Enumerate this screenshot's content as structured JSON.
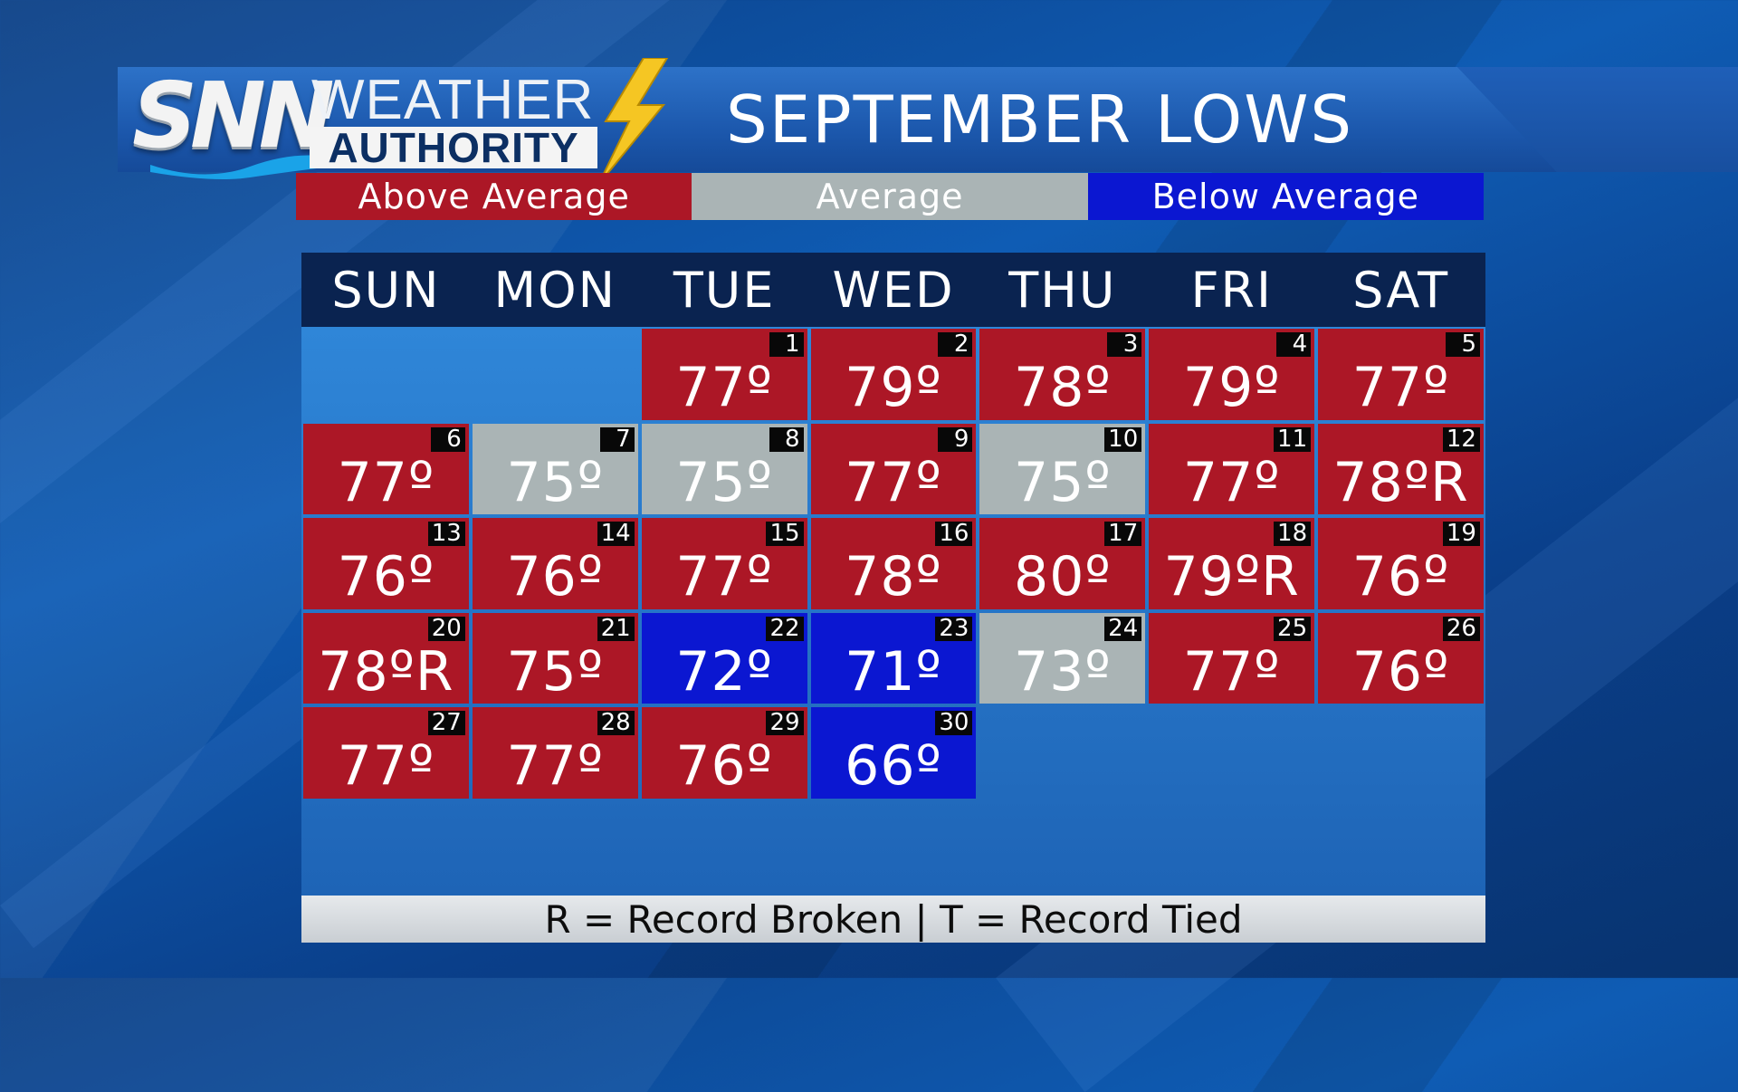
{
  "brand": {
    "logo_text": "SNN",
    "weather_word": "WEATHER",
    "authority_word": "AUTHORITY"
  },
  "title": "SEPTEMBER LOWS",
  "legend": [
    {
      "label": "Above Average",
      "color": "#ac1726"
    },
    {
      "label": "Average",
      "color": "#aab4b5"
    },
    {
      "label": "Below Average",
      "color": "#0b17d1"
    }
  ],
  "days": [
    "SUN",
    "MON",
    "TUE",
    "WED",
    "THU",
    "FRI",
    "SAT"
  ],
  "calendar": [
    {
      "date": "1",
      "temp": "77º",
      "status": "above",
      "weekday": 2,
      "week": 0
    },
    {
      "date": "2",
      "temp": "79º",
      "status": "above",
      "weekday": 3,
      "week": 0
    },
    {
      "date": "3",
      "temp": "78º",
      "status": "above",
      "weekday": 4,
      "week": 0
    },
    {
      "date": "4",
      "temp": "79º",
      "status": "above",
      "weekday": 5,
      "week": 0
    },
    {
      "date": "5",
      "temp": "77º",
      "status": "above",
      "weekday": 6,
      "week": 0
    },
    {
      "date": "6",
      "temp": "77º",
      "status": "above",
      "weekday": 0,
      "week": 1
    },
    {
      "date": "7",
      "temp": "75º",
      "status": "avg",
      "weekday": 1,
      "week": 1
    },
    {
      "date": "8",
      "temp": "75º",
      "status": "avg",
      "weekday": 2,
      "week": 1
    },
    {
      "date": "9",
      "temp": "77º",
      "status": "above",
      "weekday": 3,
      "week": 1
    },
    {
      "date": "10",
      "temp": "75º",
      "status": "avg",
      "weekday": 4,
      "week": 1
    },
    {
      "date": "11",
      "temp": "77º",
      "status": "above",
      "weekday": 5,
      "week": 1
    },
    {
      "date": "12",
      "temp": "78ºR",
      "status": "above",
      "weekday": 6,
      "week": 1
    },
    {
      "date": "13",
      "temp": "76º",
      "status": "above",
      "weekday": 0,
      "week": 2
    },
    {
      "date": "14",
      "temp": "76º",
      "status": "above",
      "weekday": 1,
      "week": 2
    },
    {
      "date": "15",
      "temp": "77º",
      "status": "above",
      "weekday": 2,
      "week": 2
    },
    {
      "date": "16",
      "temp": "78º",
      "status": "above",
      "weekday": 3,
      "week": 2
    },
    {
      "date": "17",
      "temp": "80º",
      "status": "above",
      "weekday": 4,
      "week": 2
    },
    {
      "date": "18",
      "temp": "79ºR",
      "status": "above",
      "weekday": 5,
      "week": 2
    },
    {
      "date": "19",
      "temp": "76º",
      "status": "above",
      "weekday": 6,
      "week": 2
    },
    {
      "date": "20",
      "temp": "78ºR",
      "status": "above",
      "weekday": 0,
      "week": 3
    },
    {
      "date": "21",
      "temp": "75º",
      "status": "above",
      "weekday": 1,
      "week": 3
    },
    {
      "date": "22",
      "temp": "72º",
      "status": "below",
      "weekday": 2,
      "week": 3
    },
    {
      "date": "23",
      "temp": "71º",
      "status": "below",
      "weekday": 3,
      "week": 3
    },
    {
      "date": "24",
      "temp": "73º",
      "status": "avg",
      "weekday": 4,
      "week": 3
    },
    {
      "date": "25",
      "temp": "77º",
      "status": "above",
      "weekday": 5,
      "week": 3
    },
    {
      "date": "26",
      "temp": "76º",
      "status": "above",
      "weekday": 6,
      "week": 3
    },
    {
      "date": "27",
      "temp": "77º",
      "status": "above",
      "weekday": 0,
      "week": 4
    },
    {
      "date": "28",
      "temp": "77º",
      "status": "above",
      "weekday": 1,
      "week": 4
    },
    {
      "date": "29",
      "temp": "76º",
      "status": "above",
      "weekday": 2,
      "week": 4
    },
    {
      "date": "30",
      "temp": "66º",
      "status": "below",
      "weekday": 3,
      "week": 4
    }
  ],
  "footer": "R = Record Broken | T = Record Tied"
}
